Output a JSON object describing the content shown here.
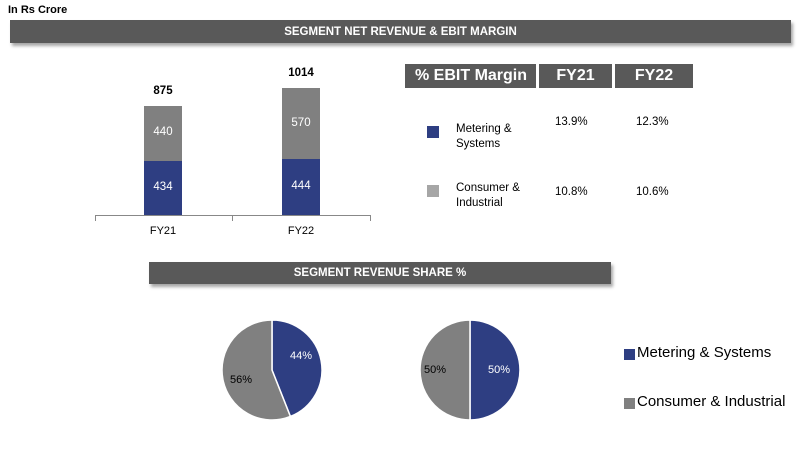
{
  "unit_label": "In Rs Crore",
  "banner_top": "SEGMENT NET REVENUE  & EBIT MARGIN",
  "banner_mid": "SEGMENT REVENUE SHARE %",
  "colors": {
    "metering": "#2e3e82",
    "consumer": "#808080",
    "banner": "#595959"
  },
  "chart_data": [
    {
      "type": "bar",
      "stacked": true,
      "categories": [
        "FY21",
        "FY22"
      ],
      "series": [
        {
          "name": "Metering & Systems",
          "values": [
            434,
            444
          ]
        },
        {
          "name": "Consumer & Industrial",
          "values": [
            440,
            570
          ]
        }
      ],
      "totals": [
        "875",
        "1014"
      ],
      "segment_labels": [
        [
          "434",
          "440"
        ],
        [
          "444",
          "570"
        ]
      ]
    },
    {
      "type": "table",
      "columns": [
        "% EBIT Margin",
        "FY21",
        "FY22"
      ],
      "rows": [
        {
          "label_line1": "Metering &",
          "label_line2": "Systems",
          "fy21": "13.9%",
          "fy22": "12.3%"
        },
        {
          "label_line1": "Consumer &",
          "label_line2": "Industrial",
          "fy21": "10.8%",
          "fy22": "10.6%"
        }
      ]
    },
    {
      "type": "pie",
      "values": [
        44,
        56
      ],
      "labels": [
        "44%",
        "56%"
      ]
    },
    {
      "type": "pie",
      "values": [
        50,
        50
      ],
      "labels": [
        "50%",
        "50%"
      ]
    }
  ],
  "legend": [
    {
      "name": "Metering & Systems"
    },
    {
      "name": "Consumer & Industrial"
    }
  ]
}
